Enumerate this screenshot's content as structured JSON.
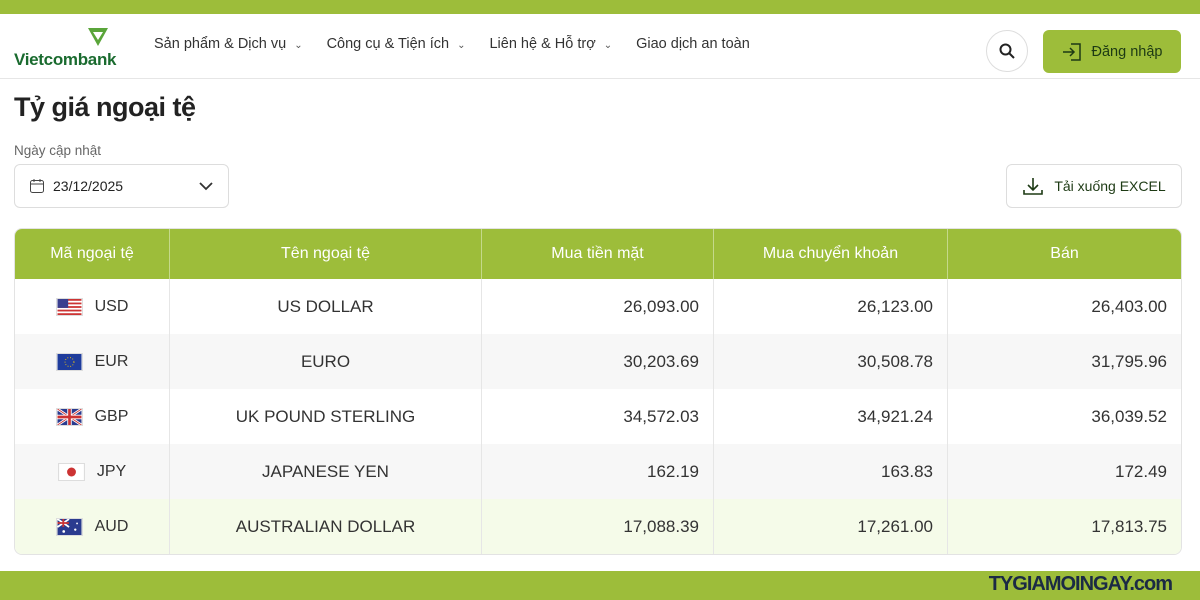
{
  "header": {
    "logo": "Vietcombank",
    "nav": [
      "Sản phẩm & Dịch vụ",
      "Công cụ & Tiện ích",
      "Liên hệ & Hỗ trợ",
      "Giao dịch an toàn"
    ],
    "login": "Đăng nhập"
  },
  "page": {
    "title": "Tỷ giá ngoại tệ",
    "date_label": "Ngày cập nhật",
    "date": "23/12/2025",
    "download": "Tải xuống EXCEL"
  },
  "table": {
    "headers": [
      "Mã ngoại tệ",
      "Tên ngoại tệ",
      "Mua tiền mặt",
      "Mua chuyển khoản",
      "Bán"
    ],
    "rows": [
      {
        "code": "USD",
        "name": "US DOLLAR",
        "cash": "26,093.00",
        "transfer": "26,123.00",
        "sell": "26,403.00"
      },
      {
        "code": "EUR",
        "name": "EURO",
        "cash": "30,203.69",
        "transfer": "30,508.78",
        "sell": "31,795.96"
      },
      {
        "code": "GBP",
        "name": "UK POUND STERLING",
        "cash": "34,572.03",
        "transfer": "34,921.24",
        "sell": "36,039.52"
      },
      {
        "code": "JPY",
        "name": "JAPANESE YEN",
        "cash": "162.19",
        "transfer": "163.83",
        "sell": "172.49"
      },
      {
        "code": "AUD",
        "name": "AUSTRALIAN DOLLAR",
        "cash": "17,088.39",
        "transfer": "17,261.00",
        "sell": "17,813.75"
      }
    ]
  },
  "footer": {
    "watermark": "TYGIAMOINGAY.com"
  },
  "colors": {
    "accent": "#9dbd3a",
    "brand_green": "#1a6b2f"
  }
}
